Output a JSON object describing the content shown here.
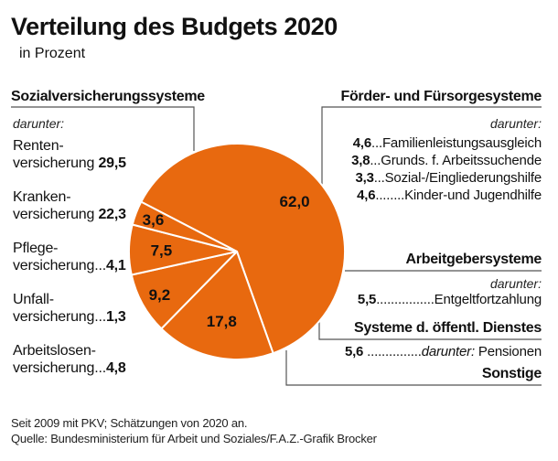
{
  "title": "Verteilung des Budgets 2020",
  "subtitle": "in Prozent",
  "colors": {
    "slice": "#e8690f",
    "separator": "#ffffff",
    "leader": "#555555",
    "text": "#111111"
  },
  "left_group": {
    "heading": "Sozialversicherungssysteme",
    "darunter": "darunter:",
    "items": [
      {
        "line1": "Renten-",
        "line2": "versicherung",
        "dots": " ",
        "value": "29,5"
      },
      {
        "line1": "Kranken-",
        "line2": "versicherung",
        "dots": " ",
        "value": "22,3"
      },
      {
        "line1": "Pflege-",
        "line2": "versicherung",
        "dots": "...",
        "value": "4,1"
      },
      {
        "line1": "Unfall-",
        "line2": "versicherung",
        "dots": "...",
        "value": "1,3"
      },
      {
        "line1": "Arbeitslosen-",
        "line2": "versicherung",
        "dots": "...",
        "value": "4,8"
      }
    ]
  },
  "right_groups": {
    "foerder": {
      "heading": "Förder- und Fürsorgesysteme",
      "darunter": "darunter:",
      "items": [
        {
          "value": "4,6",
          "dots": "...",
          "label": "Familienleistungsausgleich"
        },
        {
          "value": "3,8",
          "dots": "...",
          "label": "Grunds. f. Arbeitssuchende"
        },
        {
          "value": "3,3",
          "dots": "...",
          "label": "Sozial-/Eingliederungshilfe"
        },
        {
          "value": "4,6",
          "dots": "........",
          "label": "Kinder-und Jugendhilfe"
        }
      ]
    },
    "arbeitgeber": {
      "heading": "Arbeitgebersysteme",
      "darunter": "darunter:",
      "items": [
        {
          "value": "5,5",
          "dots": "................",
          "label": "Entgeltfortzahlung"
        }
      ]
    },
    "oeffentl": {
      "heading": "Systeme d. öffentl. Dienstes",
      "items": [
        {
          "value": "5,6",
          "dots": " ...............",
          "darunter": "darunter:",
          "label": " Pensionen"
        }
      ]
    },
    "sonstige": {
      "heading": "Sonstige"
    }
  },
  "footer": {
    "note": "Seit 2009 mit PKV; Schätzungen von 2020 an.",
    "source": "Quelle: Bundesministerium für Arbeit und Soziales/F.A.Z.-Grafik Brocker"
  },
  "chart_data": {
    "type": "pie",
    "title": "Verteilung des Budgets 2020",
    "subtitle": "in Prozent",
    "unit": "%",
    "slices": [
      {
        "name": "Sozialversicherungssysteme",
        "value": 62.0,
        "label": "62,0"
      },
      {
        "name": "Förder- und Fürsorgesysteme",
        "value": 17.8,
        "label": "17,8"
      },
      {
        "name": "Arbeitgebersysteme",
        "value": 9.2,
        "label": "9,2"
      },
      {
        "name": "Systeme d. öffentl. Dienstes",
        "value": 7.5,
        "label": "7,5"
      },
      {
        "name": "Sonstige",
        "value": 3.6,
        "label": "3,6"
      }
    ],
    "sub_items": {
      "Sozialversicherungssysteme": [
        {
          "name": "Rentenversicherung",
          "value": 29.5
        },
        {
          "name": "Krankenversicherung",
          "value": 22.3
        },
        {
          "name": "Pflegeversicherung",
          "value": 4.1
        },
        {
          "name": "Unfallversicherung",
          "value": 1.3
        },
        {
          "name": "Arbeitslosenversicherung",
          "value": 4.8
        }
      ],
      "Förder- und Fürsorgesysteme": [
        {
          "name": "Familienleistungsausgleich",
          "value": 4.6
        },
        {
          "name": "Grunds. f. Arbeitssuchende",
          "value": 3.8
        },
        {
          "name": "Sozial-/Eingliederungshilfe",
          "value": 3.3
        },
        {
          "name": "Kinder-und Jugendhilfe",
          "value": 4.6
        }
      ],
      "Arbeitgebersysteme": [
        {
          "name": "Entgeltfortzahlung",
          "value": 5.5
        }
      ],
      "Systeme d. öffentl. Dienstes": [
        {
          "name": "Pensionen",
          "value": 5.6
        }
      ]
    },
    "start_order": "clockwise, largest slice first"
  }
}
